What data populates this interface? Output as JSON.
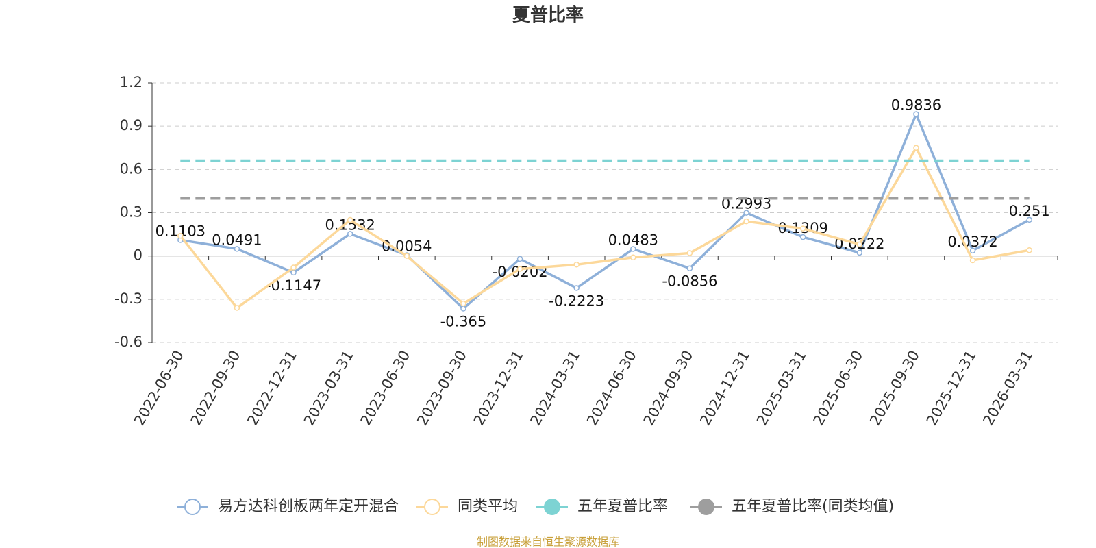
{
  "chart_data": {
    "type": "line",
    "title": "夏普比率",
    "categories": [
      "2022-06-30",
      "2022-09-30",
      "2022-12-31",
      "2023-03-31",
      "2023-06-30",
      "2023-09-30",
      "2023-12-31",
      "2024-03-31",
      "2024-06-30",
      "2024-09-30",
      "2024-12-31",
      "2025-03-31",
      "2025-06-30",
      "2025-09-30",
      "2025-12-31",
      "2026-03-31"
    ],
    "series": [
      {
        "name": "易方达科创板两年定开混合",
        "color": "#8eb0d9",
        "labels": true,
        "values": [
          0.1103,
          0.0491,
          -0.1147,
          0.1532,
          0.0054,
          -0.365,
          -0.0202,
          -0.2223,
          0.0483,
          -0.0856,
          0.2993,
          0.1309,
          0.0222,
          0.9836,
          0.0372,
          0.251
        ]
      },
      {
        "name": "同类平均",
        "color": "#fcd89a",
        "values": [
          0.14,
          -0.36,
          -0.08,
          0.25,
          0.0,
          -0.33,
          -0.09,
          -0.06,
          -0.01,
          0.02,
          0.24,
          0.19,
          0.08,
          0.75,
          -0.03,
          0.04
        ]
      },
      {
        "name": "五年夏普比率",
        "color": "#7dd3d3",
        "dashed": true,
        "values": [
          0.66,
          0.66,
          0.66,
          0.66,
          0.66,
          0.66,
          0.66,
          0.66,
          0.66,
          0.66,
          0.66,
          0.66,
          0.66,
          0.66,
          0.66,
          0.66
        ]
      },
      {
        "name": "五年夏普比率(同类均值)",
        "color": "#9e9e9e",
        "dashed": true,
        "values": [
          0.4,
          0.4,
          0.4,
          0.4,
          0.4,
          0.4,
          0.4,
          0.4,
          0.4,
          0.4,
          0.4,
          0.4,
          0.4,
          0.4,
          0.4,
          0.4
        ]
      }
    ],
    "ylim": [
      -0.6,
      1.2
    ],
    "yticks": [
      -0.6,
      -0.3,
      0,
      0.3,
      0.6,
      0.9,
      1.2
    ],
    "grid": true,
    "source": "制图数据来自恒生聚源数据库"
  }
}
